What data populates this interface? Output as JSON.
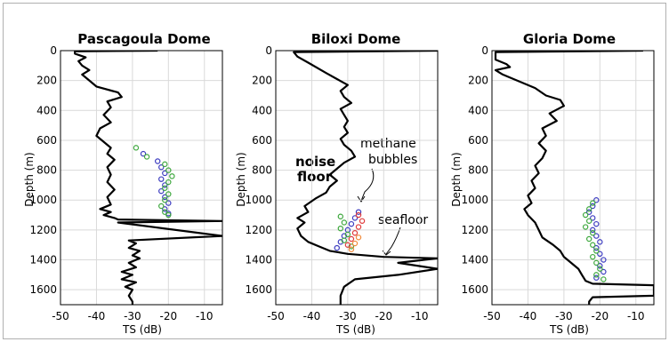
{
  "chart_data": [
    {
      "type": "line",
      "title": "Pascagoula Dome",
      "xlabel": "TS (dB)",
      "ylabel": "Depth (m)",
      "xlim": [
        -50,
        -5
      ],
      "ylim": [
        1700,
        0
      ],
      "xticks": [
        "-50",
        "-40",
        "-30",
        "-20",
        "-10"
      ],
      "yticks": [
        "0",
        "200",
        "400",
        "600",
        "800",
        "1000",
        "1200",
        "1400",
        "1600"
      ],
      "grid": true,
      "series": [
        {
          "color": "#000000",
          "points": [
            [
              -23,
              0
            ],
            [
              -46,
              5
            ],
            [
              -46,
              20
            ],
            [
              -43,
              45
            ],
            [
              -45,
              70
            ],
            [
              -44,
              100
            ],
            [
              -42,
              130
            ],
            [
              -44,
              160
            ],
            [
              -42,
              200
            ],
            [
              -40,
              240
            ],
            [
              -34,
              280
            ],
            [
              -33,
              310
            ],
            [
              -37,
              340
            ],
            [
              -36,
              380
            ],
            [
              -38,
              430
            ],
            [
              -36,
              480
            ],
            [
              -39,
              520
            ],
            [
              -40,
              570
            ],
            [
              -38,
              610
            ],
            [
              -36,
              650
            ],
            [
              -37,
              690
            ],
            [
              -35,
              730
            ],
            [
              -37,
              780
            ],
            [
              -36,
              830
            ],
            [
              -37,
              880
            ],
            [
              -35,
              930
            ],
            [
              -37,
              980
            ],
            [
              -36,
              1030
            ],
            [
              -39,
              1060
            ],
            [
              -36,
              1080
            ],
            [
              -38,
              1100
            ],
            [
              -35,
              1120
            ],
            [
              -34,
              1130
            ],
            [
              -5,
              1140
            ],
            [
              -34,
              1150
            ],
            [
              -5,
              1240
            ],
            [
              -31,
              1270
            ],
            [
              -29,
              1290
            ],
            [
              -31,
              1320
            ],
            [
              -28,
              1340
            ],
            [
              -30,
              1370
            ],
            [
              -28,
              1390
            ],
            [
              -31,
              1420
            ],
            [
              -29,
              1450
            ],
            [
              -33,
              1480
            ],
            [
              -30,
              1500
            ],
            [
              -33,
              1530
            ],
            [
              -29,
              1550
            ],
            [
              -32,
              1580
            ],
            [
              -30,
              1600
            ],
            [
              -31,
              1640
            ],
            [
              -30,
              1680
            ],
            [
              -30,
              1700
            ]
          ]
        }
      ],
      "scatter": [
        {
          "color": "#3c3cc0",
          "points": [
            [
              -27,
              690
            ],
            [
              -23,
              740
            ],
            [
              -22,
              780
            ],
            [
              -21,
              820
            ],
            [
              -22,
              860
            ],
            [
              -21,
              900
            ],
            [
              -22,
              940
            ],
            [
              -21,
              980
            ],
            [
              -20,
              1020
            ],
            [
              -21,
              1060
            ],
            [
              -20,
              1090
            ]
          ]
        },
        {
          "color": "#3ea83e",
          "points": [
            [
              -29,
              650
            ],
            [
              -26,
              710
            ],
            [
              -21,
              760
            ],
            [
              -20,
              800
            ],
            [
              -19,
              840
            ],
            [
              -20,
              880
            ],
            [
              -21,
              920
            ],
            [
              -20,
              960
            ],
            [
              -21,
              1000
            ],
            [
              -22,
              1040
            ],
            [
              -21,
              1080
            ],
            [
              -20,
              1100
            ]
          ]
        }
      ]
    },
    {
      "type": "line",
      "title": "Biloxi Dome",
      "xlabel": "TS (dB)",
      "ylabel": "Depth (m)",
      "xlim": [
        -50,
        -5
      ],
      "ylim": [
        1700,
        0
      ],
      "xticks": [
        "-50",
        "-40",
        "-30",
        "-20",
        "-10"
      ],
      "yticks": [
        "0",
        "200",
        "400",
        "600",
        "800",
        "1000",
        "1200",
        "1400",
        "1600"
      ],
      "grid": true,
      "series": [
        {
          "color": "#000000",
          "points": [
            [
              -5,
              0
            ],
            [
              -45,
              10
            ],
            [
              -44,
              40
            ],
            [
              -41,
              80
            ],
            [
              -36,
              150
            ],
            [
              -33,
              190
            ],
            [
              -30,
              230
            ],
            [
              -32,
              270
            ],
            [
              -31,
              310
            ],
            [
              -29,
              350
            ],
            [
              -32,
              390
            ],
            [
              -31,
              430
            ],
            [
              -30,
              470
            ],
            [
              -31,
              510
            ],
            [
              -30,
              550
            ],
            [
              -32,
              590
            ],
            [
              -31,
              630
            ],
            [
              -29,
              670
            ],
            [
              -28,
              710
            ],
            [
              -31,
              750
            ],
            [
              -33,
              790
            ],
            [
              -35,
              830
            ],
            [
              -33,
              870
            ],
            [
              -35,
              910
            ],
            [
              -36,
              950
            ],
            [
              -39,
              990
            ],
            [
              -42,
              1040
            ],
            [
              -41,
              1080
            ],
            [
              -44,
              1120
            ],
            [
              -42,
              1150
            ],
            [
              -44,
              1190
            ],
            [
              -43,
              1240
            ],
            [
              -41,
              1280
            ],
            [
              -38,
              1310
            ],
            [
              -35,
              1340
            ],
            [
              -30,
              1360
            ],
            [
              -20,
              1380
            ],
            [
              -5,
              1390
            ],
            [
              -16,
              1420
            ],
            [
              -5,
              1460
            ],
            [
              -16,
              1500
            ],
            [
              -28,
              1530
            ],
            [
              -31,
              1580
            ],
            [
              -32,
              1640
            ],
            [
              -32,
              1700
            ]
          ]
        }
      ],
      "scatter": [
        {
          "color": "#3c3cc0",
          "points": [
            [
              -33,
              1320
            ],
            [
              -32,
              1280
            ],
            [
              -31,
              1240
            ],
            [
              -30,
              1200
            ],
            [
              -29,
              1160
            ],
            [
              -28,
              1120
            ],
            [
              -27,
              1080
            ]
          ]
        },
        {
          "color": "#3ea83e",
          "points": [
            [
              -32,
              1110
            ],
            [
              -31,
              1150
            ],
            [
              -32,
              1190
            ],
            [
              -30,
              1230
            ],
            [
              -31,
              1270
            ],
            [
              -29,
              1310
            ]
          ]
        },
        {
          "color": "#e03a3a",
          "points": [
            [
              -30,
              1300
            ],
            [
              -29,
              1260
            ],
            [
              -28,
              1220
            ],
            [
              -27,
              1180
            ],
            [
              -26,
              1140
            ],
            [
              -27,
              1100
            ]
          ]
        },
        {
          "color": "#f08a3a",
          "points": [
            [
              -29,
              1330
            ],
            [
              -28,
              1290
            ],
            [
              -27,
              1250
            ]
          ]
        }
      ],
      "annotations": [
        "noise floor",
        "methane bubbles",
        "seafloor"
      ]
    },
    {
      "type": "line",
      "title": "Gloria Dome",
      "xlabel": "TS (dB)",
      "ylabel": "Depth (m)",
      "xlim": [
        -50,
        -5
      ],
      "ylim": [
        1700,
        0
      ],
      "xticks": [
        "-50",
        "-40",
        "-30",
        "-20",
        "-10"
      ],
      "yticks": [
        "0",
        "200",
        "400",
        "600",
        "800",
        "1000",
        "1200",
        "1400",
        "1600"
      ],
      "grid": true,
      "series": [
        {
          "color": "#000000",
          "points": [
            [
              -8,
              0
            ],
            [
              -49,
              10
            ],
            [
              -49,
              60
            ],
            [
              -46,
              90
            ],
            [
              -45,
              110
            ],
            [
              -49,
              130
            ],
            [
              -47,
              160
            ],
            [
              -44,
              190
            ],
            [
              -38,
              250
            ],
            [
              -35,
              300
            ],
            [
              -31,
              330
            ],
            [
              -30,
              370
            ],
            [
              -34,
              420
            ],
            [
              -32,
              470
            ],
            [
              -36,
              520
            ],
            [
              -35,
              570
            ],
            [
              -37,
              620
            ],
            [
              -35,
              670
            ],
            [
              -36,
              720
            ],
            [
              -38,
              770
            ],
            [
              -37,
              820
            ],
            [
              -39,
              870
            ],
            [
              -38,
              920
            ],
            [
              -40,
              970
            ],
            [
              -39,
              1020
            ],
            [
              -41,
              1060
            ],
            [
              -40,
              1100
            ],
            [
              -38,
              1150
            ],
            [
              -37,
              1200
            ],
            [
              -36,
              1250
            ],
            [
              -33,
              1300
            ],
            [
              -31,
              1340
            ],
            [
              -30,
              1380
            ],
            [
              -28,
              1420
            ],
            [
              -26,
              1460
            ],
            [
              -25,
              1500
            ],
            [
              -24,
              1540
            ],
            [
              -22,
              1560
            ],
            [
              -5,
              1570
            ],
            [
              -5,
              1640
            ],
            [
              -22,
              1650
            ],
            [
              -23,
              1680
            ],
            [
              -23,
              1700
            ]
          ]
        }
      ],
      "scatter": [
        {
          "color": "#3c3cc0",
          "points": [
            [
              -21,
              1000
            ],
            [
              -22,
              1040
            ],
            [
              -23,
              1080
            ],
            [
              -22,
              1120
            ],
            [
              -21,
              1160
            ],
            [
              -22,
              1200
            ],
            [
              -21,
              1240
            ],
            [
              -20,
              1280
            ],
            [
              -21,
              1320
            ],
            [
              -20,
              1360
            ],
            [
              -19,
              1400
            ],
            [
              -20,
              1440
            ],
            [
              -19,
              1480
            ],
            [
              -21,
              1520
            ]
          ]
        },
        {
          "color": "#3ea83e",
          "points": [
            [
              -22,
              1020
            ],
            [
              -23,
              1060
            ],
            [
              -24,
              1100
            ],
            [
              -23,
              1140
            ],
            [
              -24,
              1180
            ],
            [
              -22,
              1220
            ],
            [
              -23,
              1260
            ],
            [
              -22,
              1300
            ],
            [
              -21,
              1340
            ],
            [
              -22,
              1380
            ],
            [
              -21,
              1420
            ],
            [
              -20,
              1460
            ],
            [
              -21,
              1500
            ],
            [
              -19,
              1530
            ]
          ]
        }
      ]
    }
  ]
}
